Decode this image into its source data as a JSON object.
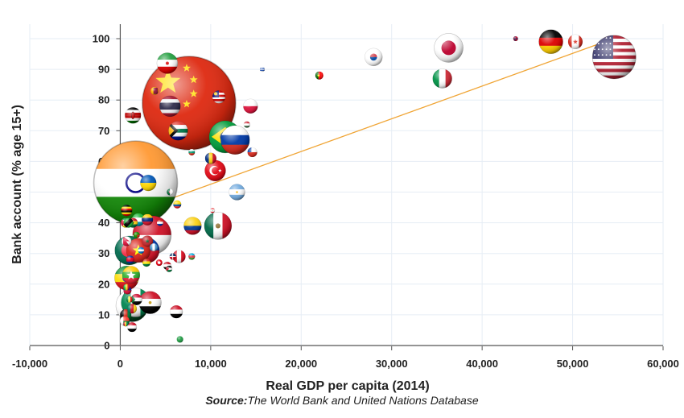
{
  "chart_data": {
    "type": "scatter",
    "title": "",
    "xlabel": "Real GDP per capita (2014)",
    "ylabel": "Bank account (% age 15+)",
    "xlim": [
      -10000,
      60000
    ],
    "ylim": [
      0,
      105
    ],
    "x_ticks": [
      -10000,
      0,
      10000,
      20000,
      30000,
      40000,
      50000,
      60000
    ],
    "x_tick_labels": [
      "-10,000",
      "0",
      "10,000",
      "20,000",
      "30,000",
      "40,000",
      "50,000",
      "60,000"
    ],
    "y_ticks": [
      0,
      10,
      20,
      30,
      40,
      50,
      60,
      70,
      80,
      90,
      100
    ],
    "y_tick_labels": [
      "0",
      "10",
      "20",
      "30",
      "40",
      "50",
      "60",
      "70",
      "80",
      "90",
      "100"
    ],
    "grid": true,
    "bubble_style": "country flag spheres, size by population",
    "trendline": {
      "x": [
        1500,
        54500
      ],
      "y": [
        43.5,
        100
      ],
      "color": "#f0a535"
    },
    "points": [
      {
        "flag": "china",
        "x": 7600,
        "y": 79,
        "r": 58
      },
      {
        "flag": "india",
        "x": 1700,
        "y": 53,
        "r": 52
      },
      {
        "flag": "usa",
        "x": 54600,
        "y": 94,
        "r": 27
      },
      {
        "flag": "indonesia",
        "x": 3500,
        "y": 36,
        "r": 24
      },
      {
        "flag": "brazil",
        "x": 11600,
        "y": 68,
        "r": 20
      },
      {
        "flag": "pakistan",
        "x": 1300,
        "y": 13,
        "r": 20
      },
      {
        "flag": "nigeria",
        "x": 1700,
        "y": 14,
        "r": 18
      },
      {
        "flag": "bangladesh",
        "x": 1000,
        "y": 31,
        "r": 18
      },
      {
        "flag": "russia",
        "x": 12700,
        "y": 67,
        "r": 18
      },
      {
        "flag": "japan",
        "x": 36300,
        "y": 97,
        "r": 18
      },
      {
        "flag": "mexico",
        "x": 10800,
        "y": 39,
        "r": 17
      },
      {
        "flag": "philippines",
        "x": 2900,
        "y": 31,
        "r": 16
      },
      {
        "flag": "vietnam",
        "x": 2000,
        "y": 31,
        "r": 15
      },
      {
        "flag": "ethiopia",
        "x": 700,
        "y": 22,
        "r": 15
      },
      {
        "flag": "germany",
        "x": 47600,
        "y": 99,
        "r": 15
      },
      {
        "flag": "egypt",
        "x": 3300,
        "y": 14,
        "r": 14
      },
      {
        "flag": "iran",
        "x": 5200,
        "y": 92,
        "r": 13
      },
      {
        "flag": "turkey",
        "x": 10500,
        "y": 57,
        "r": 13
      },
      {
        "flag": "thailand",
        "x": 5500,
        "y": 78,
        "r": 13
      },
      {
        "flag": "italy",
        "x": 35600,
        "y": 87,
        "r": 12
      },
      {
        "flag": "south-africa",
        "x": 6400,
        "y": 70,
        "r": 12
      },
      {
        "flag": "south-korea",
        "x": 28000,
        "y": 94,
        "r": 11
      },
      {
        "flag": "colombia",
        "x": 8000,
        "y": 39,
        "r": 11
      },
      {
        "flag": "myanmar",
        "x": 1200,
        "y": 23,
        "r": 11
      },
      {
        "flag": "kenya",
        "x": 1400,
        "y": 75,
        "r": 10
      },
      {
        "flag": "argentina",
        "x": 12900,
        "y": 50,
        "r": 10
      },
      {
        "flag": "ukraine",
        "x": 3100,
        "y": 53,
        "r": 10
      },
      {
        "flag": "poland",
        "x": 14400,
        "y": 78,
        "r": 9
      },
      {
        "flag": "canada",
        "x": 50300,
        "y": 99,
        "r": 9
      },
      {
        "flag": "iraq",
        "x": 6200,
        "y": 11,
        "r": 8
      },
      {
        "flag": "malaysia",
        "x": 10900,
        "y": 81,
        "r": 8
      },
      {
        "flag": "peru",
        "x": 6500,
        "y": 29,
        "r": 8
      },
      {
        "flag": "uzbekistan",
        "x": 2000,
        "y": 41,
        "r": 8
      },
      {
        "flag": "venezuela",
        "x": 3000,
        "y": 41,
        "r": 7
      },
      {
        "flag": "morocco",
        "x": 3000,
        "y": 34,
        "r": 7
      },
      {
        "flag": "romania",
        "x": 10000,
        "y": 61,
        "r": 7
      },
      {
        "flag": "afghanistan",
        "x": 600,
        "y": 10,
        "r": 7
      },
      {
        "flag": "uganda",
        "x": 700,
        "y": 44,
        "r": 7
      },
      {
        "flag": "sudan",
        "x": 1800,
        "y": 15,
        "r": 7
      },
      {
        "flag": "nepal",
        "x": 700,
        "y": 34,
        "r": 6
      },
      {
        "flag": "yemen",
        "x": 1300,
        "y": 6,
        "r": 6
      },
      {
        "flag": "chile",
        "x": 14600,
        "y": 63,
        "r": 6
      },
      {
        "flag": "cameroon",
        "x": 1300,
        "y": 12,
        "r": 6
      },
      {
        "flag": "ghana",
        "x": 1400,
        "y": 40,
        "r": 6
      },
      {
        "flag": "mozambique",
        "x": 600,
        "y": 40,
        "r": 6
      },
      {
        "flag": "madagascar",
        "x": 500,
        "y": 8,
        "r": 6
      },
      {
        "flag": "tanzania",
        "x": 900,
        "y": 40,
        "r": 6
      },
      {
        "flag": "portugal",
        "x": 22000,
        "y": 88,
        "r": 5
      },
      {
        "flag": "sri-lanka",
        "x": 3800,
        "y": 83,
        "r": 5
      },
      {
        "flag": "ecuador",
        "x": 6300,
        "y": 46,
        "r": 5
      },
      {
        "flag": "guatemala",
        "x": 3700,
        "y": 32,
        "r": 5
      },
      {
        "flag": "syria",
        "x": 5200,
        "y": 26,
        "r": 5
      },
      {
        "flag": "cambodia",
        "x": 1100,
        "y": 28,
        "r": 5
      },
      {
        "flag": "bolivia",
        "x": 2900,
        "y": 27,
        "r": 5
      },
      {
        "flag": "haiti",
        "x": 800,
        "y": 18,
        "r": 5
      },
      {
        "flag": "tunisia",
        "x": 4300,
        "y": 27,
        "r": 4
      },
      {
        "flag": "senegal",
        "x": 1000,
        "y": 15,
        "r": 4
      },
      {
        "flag": "mali",
        "x": 700,
        "y": 19,
        "r": 4
      },
      {
        "flag": "dominican-republic",
        "x": 5800,
        "y": 29,
        "r": 4
      },
      {
        "flag": "zambia",
        "x": 1800,
        "y": 36,
        "r": 4
      },
      {
        "flag": "paraguay",
        "x": 4400,
        "y": 40,
        "r": 4
      },
      {
        "flag": "bulgaria",
        "x": 7900,
        "y": 63,
        "r": 4
      },
      {
        "flag": "hungary",
        "x": 14000,
        "y": 72,
        "r": 4
      },
      {
        "flag": "cuba",
        "x": 7900,
        "y": 29,
        "r": 4
      },
      {
        "flag": "honduras",
        "x": 2300,
        "y": 31,
        "r": 4
      },
      {
        "flag": "jordan",
        "x": 5400,
        "y": 25,
        "r": 4
      },
      {
        "flag": "algeria",
        "x": 5500,
        "y": 50,
        "r": 4
      },
      {
        "flag": "azerbaijan",
        "x": 7900,
        "y": 29,
        "r": 4
      },
      {
        "flag": "libya",
        "x": 6600,
        "y": 2,
        "r": 4
      },
      {
        "flag": "lebanon",
        "x": 10200,
        "y": 44,
        "r": 3
      },
      {
        "flag": "uruguay",
        "x": 15700,
        "y": 90,
        "r": 3
      },
      {
        "flag": "norway",
        "x": 43700,
        "y": 100,
        "r": 3
      },
      {
        "flag": "guinea",
        "x": 600,
        "y": 7,
        "r": 3
      }
    ]
  },
  "source": {
    "label": "Source:",
    "text": "The World Bank and United Nations Database"
  },
  "colors": {
    "grid": "#e6edf5",
    "axis": "#555555",
    "trendline": "#f0a535"
  }
}
